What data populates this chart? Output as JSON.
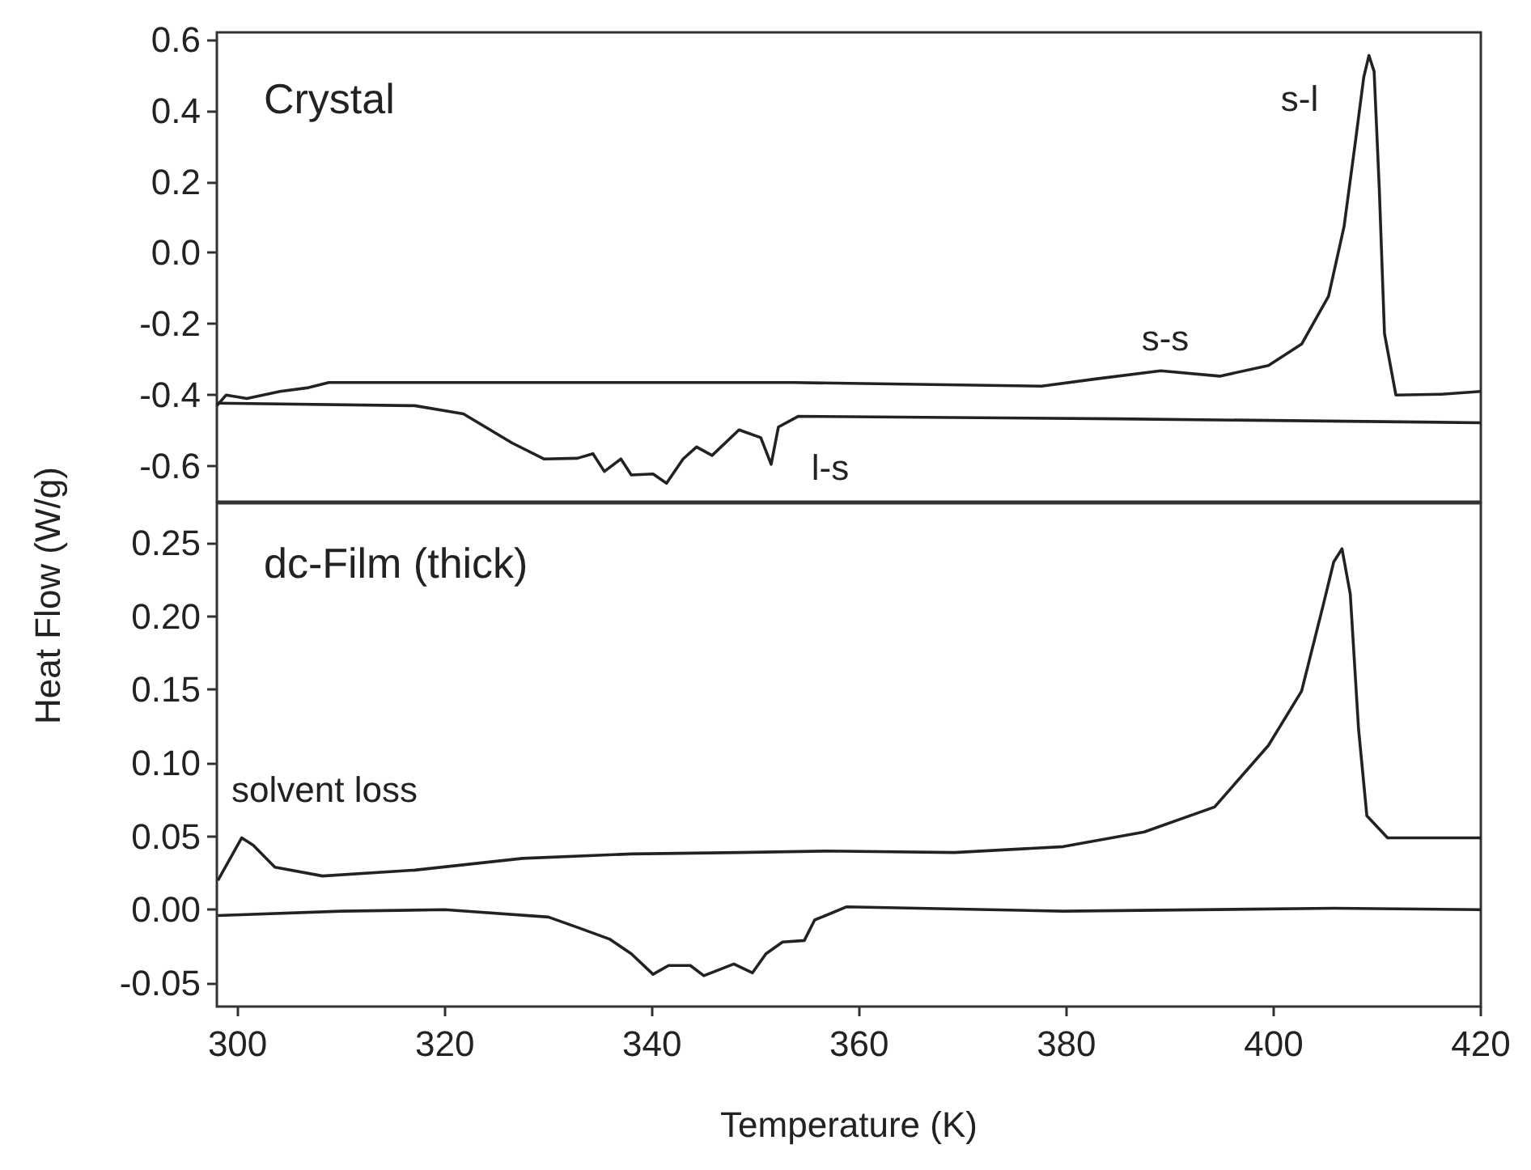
{
  "chart_data": [
    {
      "type": "line",
      "ylabel": "Heat Flow (W/g)",
      "xlim": [
        298,
        420
      ],
      "ylim": [
        -0.7,
        0.62
      ],
      "tick_labels": "y",
      "yticks": [
        {
          "value": -0.6,
          "label": "-0.6"
        },
        {
          "value": -0.4,
          "label": "-0.4"
        },
        {
          "value": -0.2,
          "label": "-0.2"
        },
        {
          "value": 0,
          "label": "0.0"
        },
        {
          "value": 0.2,
          "label": "0.2"
        },
        {
          "value": 0.4,
          "label": "0.4"
        },
        {
          "value": 0.6,
          "label": "0.6"
        }
      ],
      "annotations": [
        "Crystal",
        "s-s",
        "s-l",
        "l-s"
      ],
      "grid": false,
      "series": [
        {
          "color": "#222222",
          "x": [
            298.0,
            298.9,
            300.9,
            304.1,
            306.7,
            308.8,
            320,
            340,
            353.6,
            377.6,
            382.8,
            389.1,
            394.8,
            399.5,
            402.7,
            405.3,
            406.8,
            407.9,
            408.7,
            409.2,
            409.7,
            410.2,
            410.7,
            411.8,
            416.2,
            420
          ],
          "values": [
            -0.43,
            -0.4,
            -0.41,
            -0.39,
            -0.38,
            -0.365,
            -0.365,
            -0.365,
            -0.365,
            -0.375,
            -0.355,
            -0.332,
            -0.347,
            -0.317,
            -0.257,
            -0.122,
            0.074,
            0.314,
            0.494,
            0.555,
            0.51,
            0.18,
            -0.227,
            -0.4,
            -0.398,
            -0.39
          ]
        },
        {
          "color": "#222222",
          "x": [
            298.0,
            317.1,
            321.8,
            326.5,
            329.6,
            332.8,
            334.3,
            335.4,
            337.0,
            338.0,
            340.1,
            341.4,
            343.0,
            344.3,
            345.8,
            348.4,
            350.5,
            351.5,
            352.2,
            354.1,
            384.9,
            420
          ],
          "values": [
            -0.423,
            -0.43,
            -0.453,
            -0.535,
            -0.58,
            -0.578,
            -0.565,
            -0.615,
            -0.58,
            -0.625,
            -0.622,
            -0.648,
            -0.58,
            -0.546,
            -0.57,
            -0.498,
            -0.52,
            -0.595,
            -0.49,
            -0.46,
            -0.467,
            -0.478
          ]
        }
      ]
    },
    {
      "type": "line",
      "xlabel": "Temperature (K)",
      "xlim": [
        298,
        420
      ],
      "xticks": [
        300,
        320,
        340,
        360,
        380,
        400,
        420
      ],
      "ylim": [
        -0.066,
        0.277
      ],
      "yticks": [
        {
          "value": -0.05,
          "label": "-0.05"
        },
        {
          "value": 0,
          "label": "0.00"
        },
        {
          "value": 0.05,
          "label": "0.05"
        },
        {
          "value": 0.1,
          "label": "0.10"
        },
        {
          "value": 0.15,
          "label": "0.15"
        },
        {
          "value": 0.2,
          "label": "0.20"
        },
        0.25
      ],
      "annotations": [
        "dc-Film (thick)",
        "solvent loss"
      ],
      "grid": false,
      "series": [
        {
          "color": "#222222",
          "x": [
            298.1,
            300.4,
            301.5,
            303.6,
            308.2,
            317.1,
            327.5,
            338.0,
            348.4,
            356.8,
            369.2,
            379.7,
            387.5,
            394.3,
            399.5,
            402.7,
            404.8,
            405.8,
            406.6,
            407.4,
            408.2,
            409.0,
            411.0,
            420
          ],
          "values": [
            0.02,
            0.049,
            0.044,
            0.029,
            0.023,
            0.027,
            0.035,
            0.038,
            0.039,
            0.04,
            0.039,
            0.043,
            0.053,
            0.07,
            0.112,
            0.149,
            0.208,
            0.237,
            0.246,
            0.215,
            0.123,
            0.064,
            0.049,
            0.049
          ]
        },
        {
          "color": "#222222",
          "x": [
            298.1,
            310,
            320,
            330,
            332.8,
            335.9,
            338.0,
            340.1,
            341.6,
            343.7,
            345.0,
            347.9,
            349.7,
            351.0,
            352.6,
            354.7,
            355.7,
            358.8,
            379.7,
            405.8,
            420
          ],
          "values": [
            -0.004,
            -0.001,
            0.0,
            -0.005,
            -0.012,
            -0.02,
            -0.03,
            -0.044,
            -0.038,
            -0.038,
            -0.045,
            -0.037,
            -0.043,
            -0.03,
            -0.022,
            -0.021,
            -0.007,
            0.002,
            -0.001,
            0.001,
            0.0
          ]
        }
      ]
    }
  ]
}
